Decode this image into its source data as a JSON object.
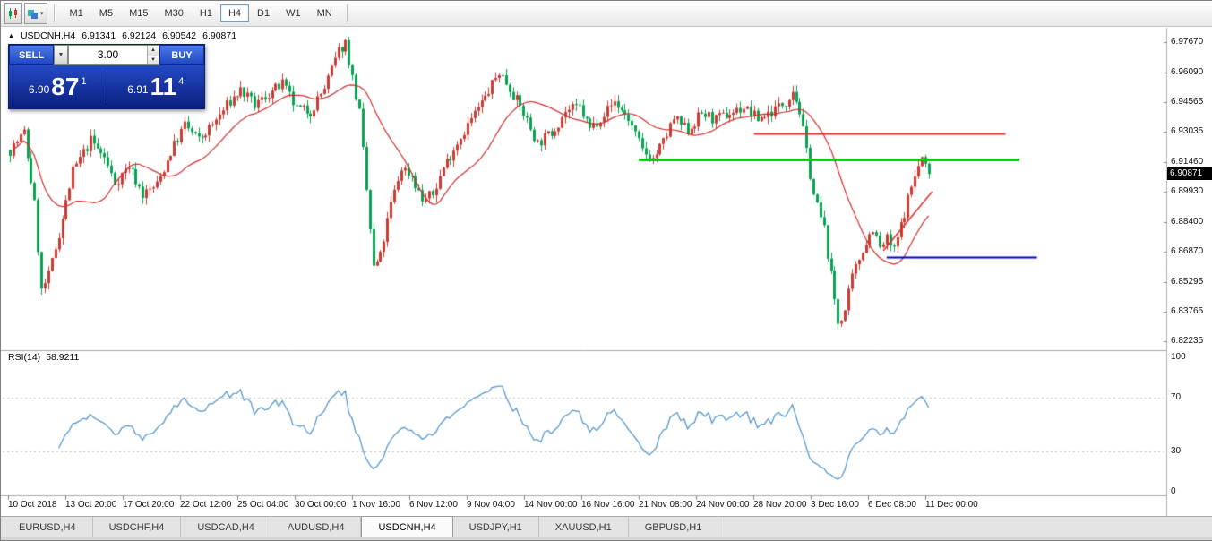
{
  "toolbar": {
    "timeframes": [
      "M1",
      "M5",
      "M15",
      "M30",
      "H1",
      "H4",
      "D1",
      "W1",
      "MN"
    ],
    "active_timeframe": "H4"
  },
  "symbol_header": {
    "arrow": "▲",
    "title": "USDCNH,H4",
    "open": "6.91341",
    "high": "6.92124",
    "low": "6.90542",
    "close": "6.90871"
  },
  "trade_panel": {
    "sell_label": "SELL",
    "buy_label": "BUY",
    "lot_value": "3.00",
    "sell_price_prefix": "6.90",
    "sell_price_big": "87",
    "sell_price_sup": "1",
    "buy_price_prefix": "6.91",
    "buy_price_big": "11",
    "buy_price_sup": "4",
    "dropdown_caret": "▼",
    "spin_up": "▲",
    "spin_down": "▼"
  },
  "price_scale": {
    "ticks": [
      "6.97670",
      "6.96090",
      "6.94565",
      "6.93035",
      "6.91460",
      "6.89930",
      "6.88400",
      "6.86870",
      "6.85295",
      "6.83765",
      "6.82235"
    ],
    "current_price": "6.90871"
  },
  "rsi_panel": {
    "name": "RSI(14)",
    "value": "58.9211",
    "scale": [
      "100",
      "70",
      "30",
      "0"
    ]
  },
  "time_axis": [
    "10 Oct 2018",
    "13 Oct 20:00",
    "17 Oct 20:00",
    "22 Oct 12:00",
    "25 Oct 04:00",
    "30 Oct 00:00",
    "1 Nov 16:00",
    "6 Nov 12:00",
    "9 Nov 04:00",
    "14 Nov 00:00",
    "16 Nov 16:00",
    "21 Nov 08:00",
    "24 Nov 00:00",
    "28 Nov 20:00",
    "3 Dec 16:00",
    "6 Dec 08:00",
    "11 Dec 00:00"
  ],
  "tabs": {
    "items": [
      "EURUSD,H4",
      "USDCHF,H4",
      "USDCAD,H4",
      "AUDUSD,H4",
      "USDCNH,H4",
      "USDJPY,H1",
      "XAUUSD,H1",
      "GBPUSD,H1"
    ],
    "active": "USDCNH,H4"
  },
  "chart_data": {
    "type": "candlestick",
    "symbol": "USDCNH",
    "timeframe": "H4",
    "candle_count": 264,
    "last_close": 6.90871,
    "ma_period": 20,
    "rsi_period": 14,
    "rsi_last": 58.9211,
    "colors": {
      "up": "#cc3a33",
      "down": "#0aa152",
      "ma": "#d02f2f",
      "rsi": "#4a90c8",
      "dotted": "#c0c0c0",
      "separator": "#a8a8a8",
      "scale_border": "#b0b0b0"
    },
    "price_anchors": [
      [
        0,
        6.921
      ],
      [
        4,
        6.93
      ],
      [
        7,
        6.893
      ],
      [
        9,
        6.848
      ],
      [
        11,
        6.856
      ],
      [
        14,
        6.878
      ],
      [
        18,
        6.91
      ],
      [
        23,
        6.926
      ],
      [
        27,
        6.917
      ],
      [
        30,
        6.904
      ],
      [
        34,
        6.913
      ],
      [
        38,
        6.898
      ],
      [
        42,
        6.903
      ],
      [
        46,
        6.92
      ],
      [
        50,
        6.934
      ],
      [
        54,
        6.926
      ],
      [
        58,
        6.934
      ],
      [
        62,
        6.944
      ],
      [
        66,
        6.952
      ],
      [
        70,
        6.944
      ],
      [
        74,
        6.95
      ],
      [
        78,
        6.955
      ],
      [
        82,
        6.942
      ],
      [
        86,
        6.941
      ],
      [
        90,
        6.953
      ],
      [
        94,
        6.972
      ],
      [
        96,
        6.9765
      ],
      [
        98,
        6.958
      ],
      [
        100,
        6.94
      ],
      [
        102,
        6.9
      ],
      [
        104,
        6.86
      ],
      [
        106,
        6.866
      ],
      [
        109,
        6.893
      ],
      [
        112,
        6.912
      ],
      [
        115,
        6.908
      ],
      [
        118,
        6.895
      ],
      [
        121,
        6.898
      ],
      [
        124,
        6.912
      ],
      [
        128,
        6.925
      ],
      [
        132,
        6.937
      ],
      [
        136,
        6.948
      ],
      [
        140,
        6.9615
      ],
      [
        143,
        6.953
      ],
      [
        147,
        6.94
      ],
      [
        151,
        6.9245
      ],
      [
        155,
        6.93
      ],
      [
        159,
        6.941
      ],
      [
        163,
        6.943
      ],
      [
        166,
        6.932
      ],
      [
        170,
        6.94
      ],
      [
        173,
        6.946
      ],
      [
        177,
        6.937
      ],
      [
        181,
        6.9205
      ],
      [
        184,
        6.9165
      ],
      [
        187,
        6.925
      ],
      [
        190,
        6.937
      ],
      [
        194,
        6.931
      ],
      [
        198,
        6.94
      ],
      [
        202,
        6.9365
      ],
      [
        206,
        6.94
      ],
      [
        210,
        6.943
      ],
      [
        214,
        6.937
      ],
      [
        218,
        6.941
      ],
      [
        222,
        6.946
      ],
      [
        224,
        6.9525
      ],
      [
        226,
        6.941
      ],
      [
        228,
        6.92
      ],
      [
        230,
        6.898
      ],
      [
        233,
        6.88
      ],
      [
        235,
        6.856
      ],
      [
        237,
        6.832
      ],
      [
        239,
        6.838
      ],
      [
        241,
        6.855
      ],
      [
        244,
        6.87
      ],
      [
        247,
        6.881
      ],
      [
        249,
        6.87
      ],
      [
        251,
        6.875
      ],
      [
        253,
        6.869
      ],
      [
        255,
        6.882
      ],
      [
        257,
        6.896
      ],
      [
        259,
        6.908
      ],
      [
        261,
        6.917
      ],
      [
        263,
        6.9087
      ]
    ],
    "levels": [
      {
        "kind": "hline",
        "price": 6.9295,
        "from": 213,
        "to": 285,
        "color": "#e02a2a",
        "width": 2
      },
      {
        "kind": "hline",
        "price": 6.916,
        "from": 180,
        "to": 289,
        "color": "#00cc00",
        "width": 3
      },
      {
        "kind": "hline",
        "price": 6.866,
        "from": 251,
        "to": 294,
        "color": "#0000d0",
        "width": 2
      },
      {
        "kind": "trendline",
        "from": [
          250,
          6.869
        ],
        "to": [
          264,
          6.8995
        ],
        "color": "#e02a2a",
        "width": 1.5
      }
    ]
  }
}
